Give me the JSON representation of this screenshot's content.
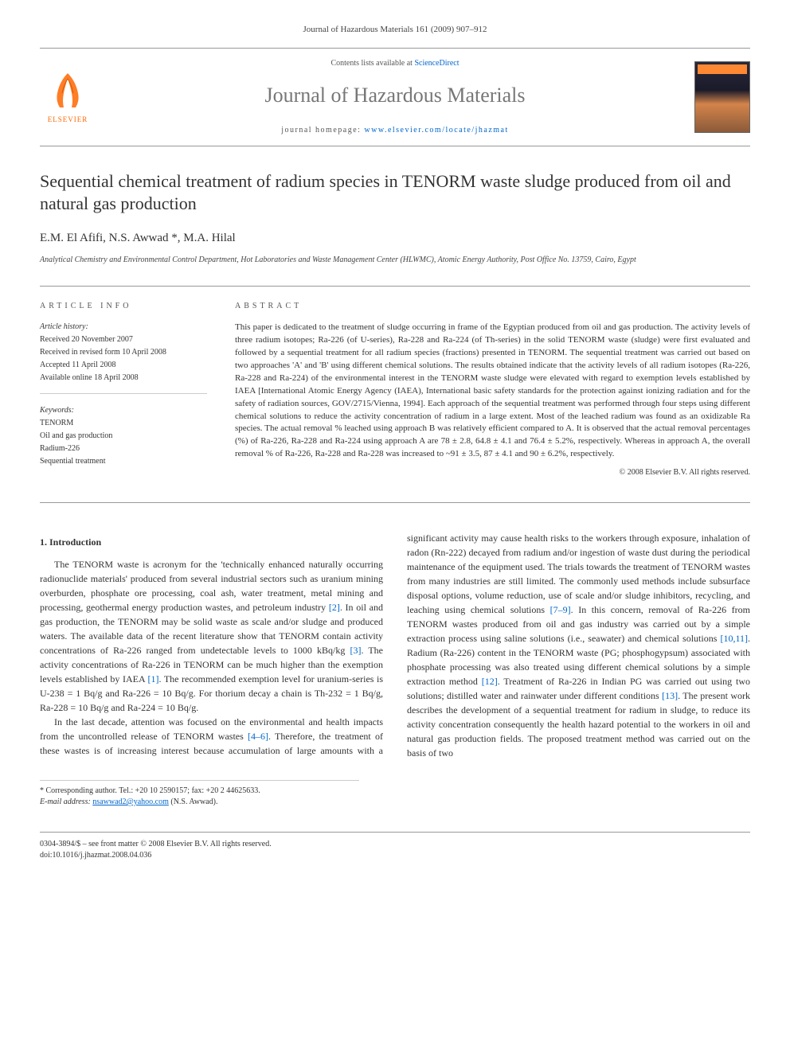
{
  "header": {
    "citation": "Journal of Hazardous Materials 161 (2009) 907–912",
    "contents_prefix": "Contents lists available at ",
    "contents_link": "ScienceDirect",
    "journal_name": "Journal of Hazardous Materials",
    "homepage_prefix": "journal homepage: ",
    "homepage_link": "www.elsevier.com/locate/jhazmat",
    "elsevier_label": "ELSEVIER"
  },
  "article": {
    "title": "Sequential chemical treatment of radium species in TENORM waste sludge produced from oil and natural gas production",
    "authors": "E.M. El Afifi, N.S. Awwad *, M.A. Hilal",
    "affiliation": "Analytical Chemistry and Environmental Control Department, Hot Laboratories and Waste Management Center (HLWMC), Atomic Energy Authority, Post Office No. 13759, Cairo, Egypt"
  },
  "info": {
    "heading": "ARTICLE INFO",
    "history_label": "Article history:",
    "received": "Received 20 November 2007",
    "revised": "Received in revised form 10 April 2008",
    "accepted": "Accepted 11 April 2008",
    "online": "Available online 18 April 2008",
    "keywords_label": "Keywords:",
    "keywords": [
      "TENORM",
      "Oil and gas production",
      "Radium-226",
      "Sequential treatment"
    ]
  },
  "abstract": {
    "heading": "ABSTRACT",
    "text": "This paper is dedicated to the treatment of sludge occurring in frame of the Egyptian produced from oil and gas production. The activity levels of three radium isotopes; Ra-226 (of U-series), Ra-228 and Ra-224 (of Th-series) in the solid TENORM waste (sludge) were first evaluated and followed by a sequential treatment for all radium species (fractions) presented in TENORM. The sequential treatment was carried out based on two approaches 'A' and 'B' using different chemical solutions. The results obtained indicate that the activity levels of all radium isotopes (Ra-226, Ra-228 and Ra-224) of the environmental interest in the TENORM waste sludge were elevated with regard to exemption levels established by IAEA [International Atomic Energy Agency (IAEA), International basic safety standards for the protection against ionizing radiation and for the safety of radiation sources, GOV/2715/Vienna, 1994]. Each approach of the sequential treatment was performed through four steps using different chemical solutions to reduce the activity concentration of radium in a large extent. Most of the leached radium was found as an oxidizable Ra species. The actual removal % leached using approach B was relatively efficient compared to A. It is observed that the actual removal percentages (%) of Ra-226, Ra-228 and Ra-224 using approach A are 78 ± 2.8, 64.8 ± 4.1 and 76.4 ± 5.2%, respectively. Whereas in approach A, the overall removal % of Ra-226, Ra-228 and Ra-228 was increased to ~91 ± 3.5, 87 ± 4.1 and 90 ± 6.2%, respectively.",
    "copyright": "© 2008 Elsevier B.V. All rights reserved."
  },
  "body": {
    "section1_heading": "1. Introduction",
    "para1": "The TENORM waste is acronym for the 'technically enhanced naturally occurring radionuclide materials' produced from several industrial sectors such as uranium mining overburden, phosphate ore processing, coal ash, water treatment, metal mining and processing, geothermal energy production wastes, and petroleum industry [2]. In oil and gas production, the TENORM may be solid waste as scale and/or sludge and produced waters. The available data of the recent literature show that TENORM contain activity concentrations of Ra-226 ranged from undetectable levels to 1000 kBq/kg [3]. The activity concentrations of Ra-226 in TENORM can be much higher than the exemption levels established by IAEA [1]. The recommended exemption level for uranium-series is U-238 = 1 Bq/g and Ra-226 = 10 Bq/g. For thorium decay a chain is Th-232 = 1 Bq/g, Ra-228 = 10 Bq/g and Ra-224 = 10 Bq/g.",
    "para2": "In the last decade, attention was focused on the environmental and health impacts from the uncontrolled release of TENORM wastes [4–6]. Therefore, the treatment of these wastes is of increasing interest because accumulation of large amounts with a significant activity may cause health risks to the workers through exposure, inhalation of radon (Rn-222) decayed from radium and/or ingestion of waste dust during the periodical maintenance of the equipment used. The trials towards the treatment of TENORM wastes from many industries are still limited. The commonly used methods include subsurface disposal options, volume reduction, use of scale and/or sludge inhibitors, recycling, and leaching using chemical solutions [7–9]. In this concern, removal of Ra-226 from TENORM wastes produced from oil and gas industry was carried out by a simple extraction process using saline solutions (i.e., seawater) and chemical solutions [10,11]. Radium (Ra-226) content in the TENORM waste (PG; phosphogypsum) associated with phosphate processing was also treated using different chemical solutions by a simple extraction method [12]. Treatment of Ra-226 in Indian PG was carried out using two solutions; distilled water and rainwater under different conditions [13]. The present work describes the development of a sequential treatment for radium in sludge, to reduce its activity concentration consequently the health hazard potential to the workers in oil and natural gas production fields. The proposed treatment method was carried out on the basis of two"
  },
  "footer": {
    "corresponding_label": "* Corresponding author. Tel.: +20 10 2590157; fax: +20 2 44625633.",
    "email_label": "E-mail address: ",
    "email": "nsawwad2@yahoo.com",
    "email_suffix": " (N.S. Awwad).",
    "issn_line": "0304-3894/$ – see front matter © 2008 Elsevier B.V. All rights reserved.",
    "doi_line": "doi:10.1016/j.jhazmat.2008.04.036"
  },
  "colors": {
    "link": "#0066cc",
    "elsevier_orange": "#ff6600",
    "text": "#333333",
    "muted": "#777777",
    "rule": "#999999"
  }
}
